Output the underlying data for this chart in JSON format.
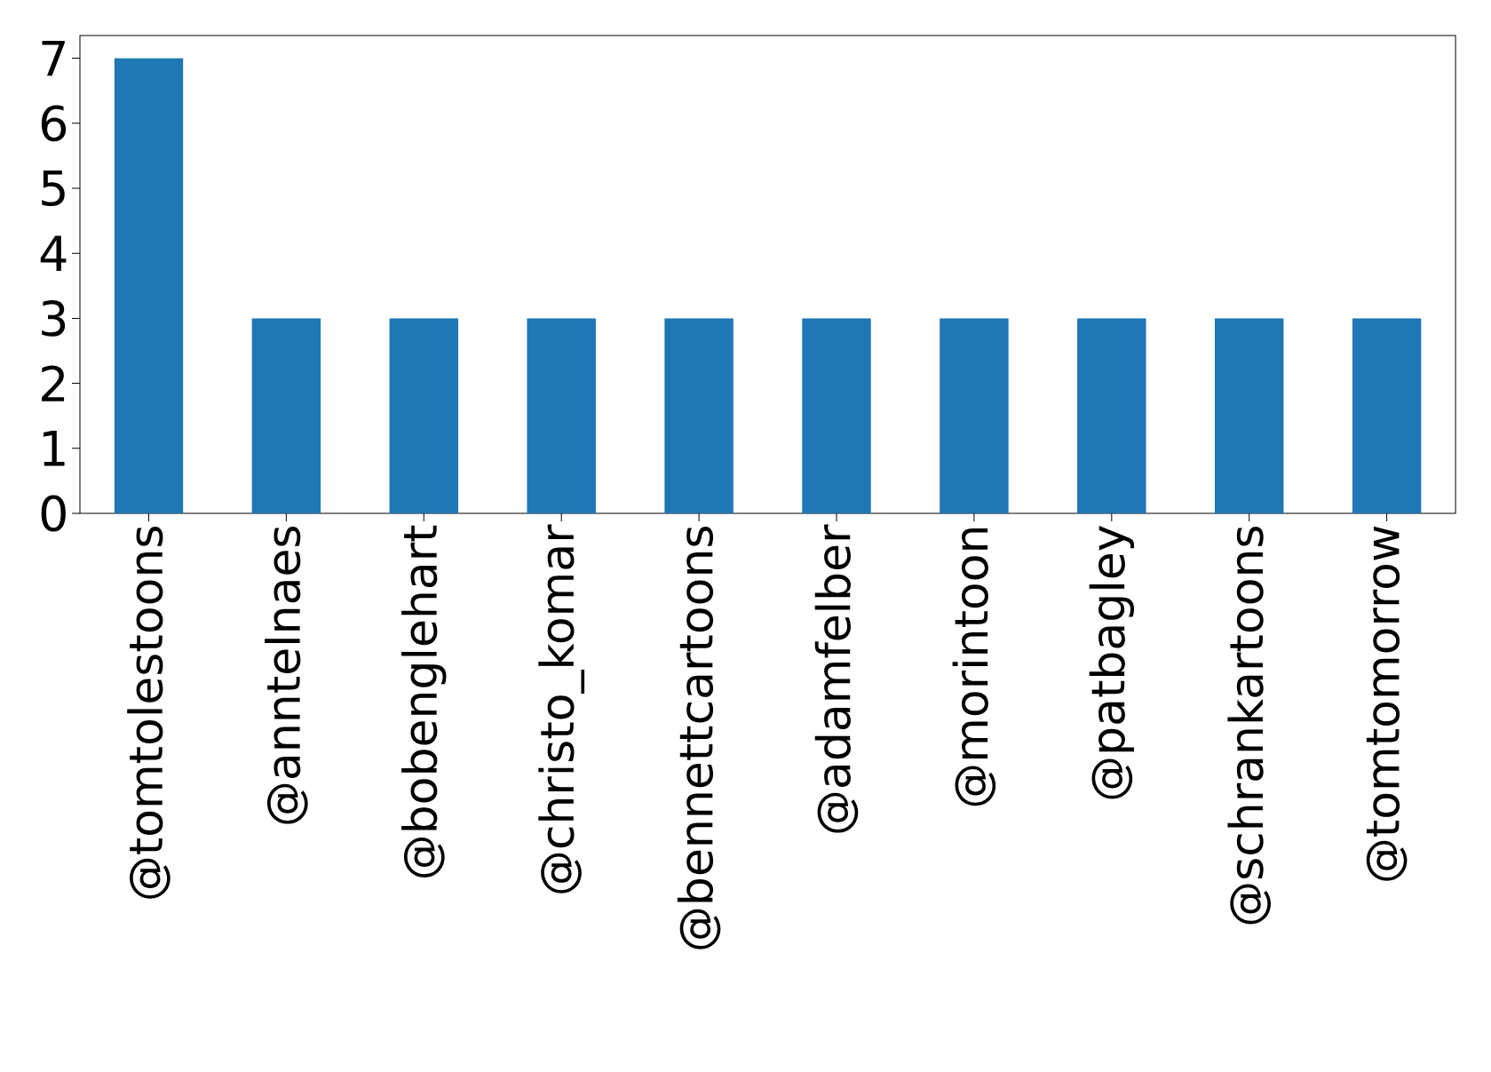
{
  "chart_data": {
    "type": "bar",
    "categories": [
      "@tomtolestoons",
      "@anntelnaes",
      "@bobenglehart",
      "@christo_komar",
      "@bennettcartoons",
      "@adamfelber",
      "@morintoon",
      "@patbagley",
      "@schrankartoons",
      "@tomtomorrow"
    ],
    "values": [
      7,
      3,
      3,
      3,
      3,
      3,
      3,
      3,
      3,
      3
    ],
    "color": "#1f77b4",
    "ylim": [
      0,
      7.35
    ],
    "yticks": [
      0,
      1,
      2,
      3,
      4,
      5,
      6,
      7
    ]
  }
}
